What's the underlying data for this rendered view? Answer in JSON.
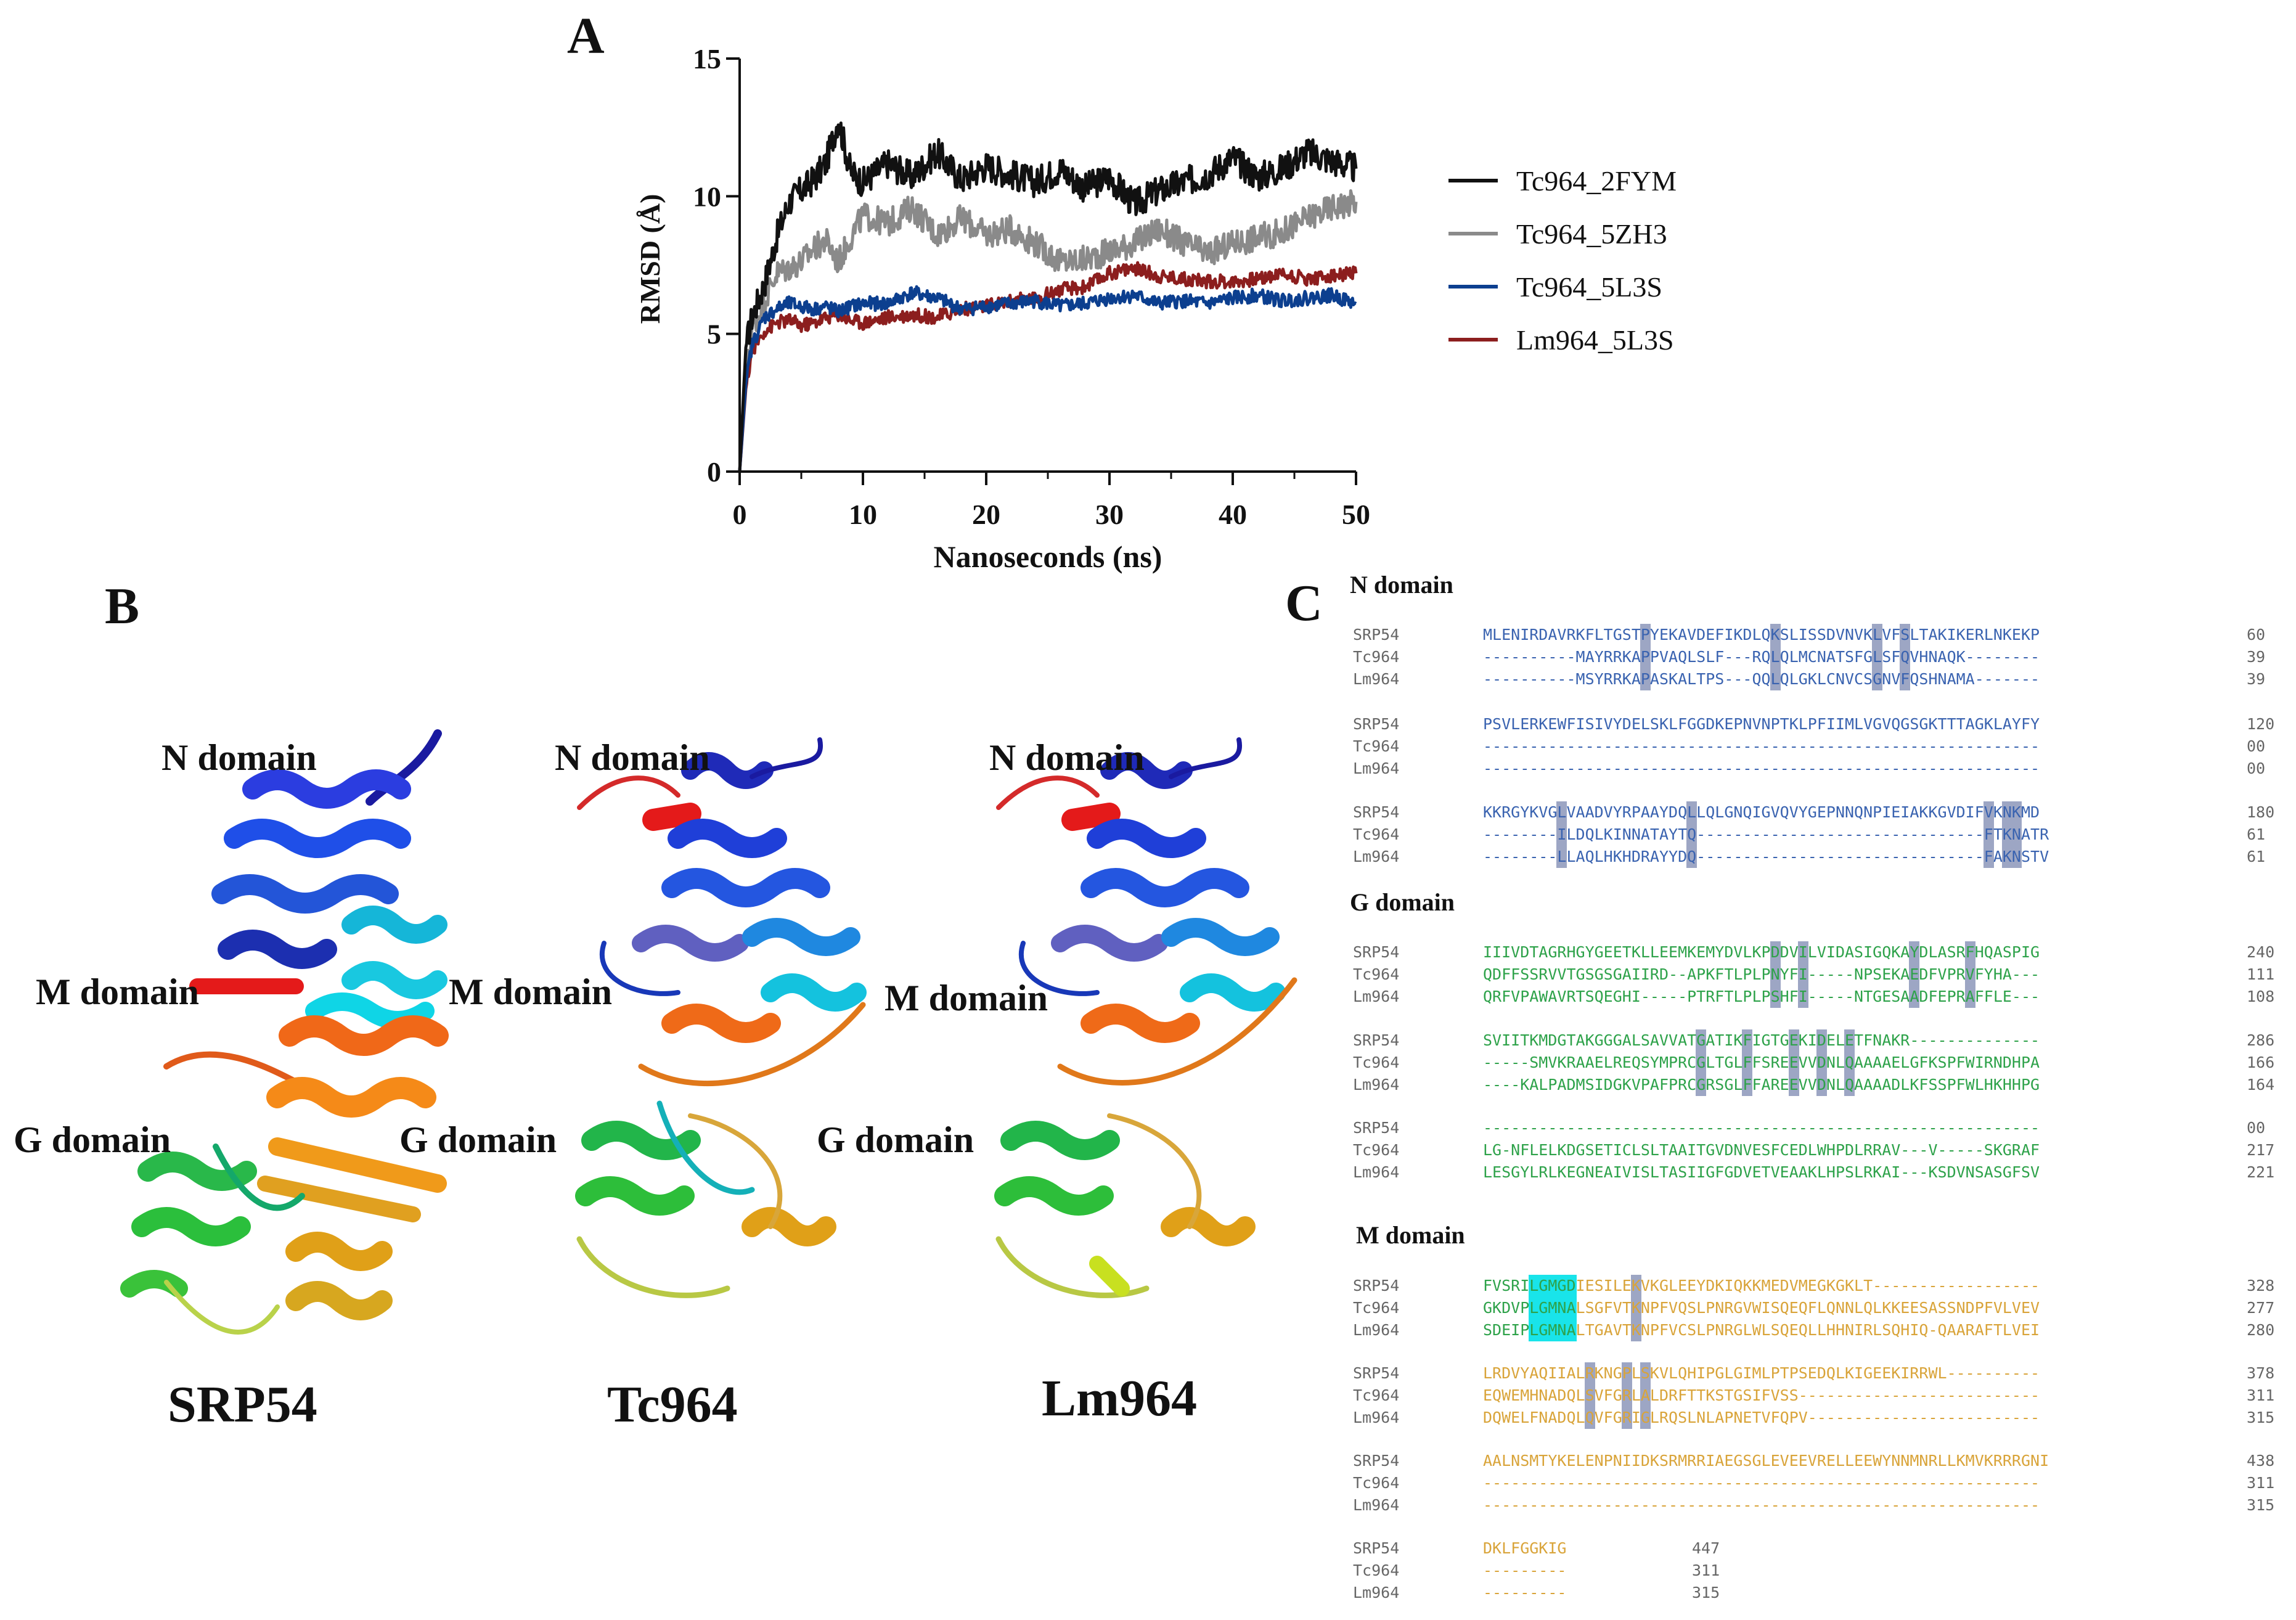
{
  "colors": {
    "tc964_2fym": "#111111",
    "tc964_5zh3": "#8a8a8a",
    "tc964_5l3s": "#0c3f8f",
    "lm964_5l3s": "#8c1e1e",
    "n_domain_seq": "#3a63b0",
    "g_domain_seq": "#2ea24a",
    "m_domain_seq": "#d9a43a",
    "highlight_grey": "#9da6c4",
    "highlight_cyan": "#19e4ea"
  },
  "panel_a": {
    "letter": "A",
    "chart_data": {
      "type": "line",
      "title": "",
      "xlabel": "Nanoseconds (ns)",
      "ylabel": "RMSD (Å)",
      "xlim": [
        0,
        50
      ],
      "ylim": [
        0,
        15
      ],
      "xticks": [
        "0",
        "10",
        "20",
        "30",
        "40",
        "50"
      ],
      "yticks": [
        "0",
        "5",
        "10",
        "15"
      ],
      "x": [
        0,
        0.5,
        1,
        2,
        3,
        4,
        5,
        6,
        7,
        8,
        9,
        10,
        12,
        14,
        16,
        18,
        20,
        22,
        24,
        26,
        28,
        30,
        32,
        34,
        36,
        38,
        40,
        42,
        44,
        46,
        48,
        50
      ],
      "series": [
        {
          "name": "Tc964_2FYM",
          "values": [
            0,
            4.5,
            5.6,
            6.8,
            8.5,
            9.8,
            10.2,
            10.6,
            11.2,
            12.8,
            10.9,
            10.5,
            11.2,
            10.7,
            11.6,
            10.6,
            11.1,
            10.8,
            10.5,
            11.0,
            10.3,
            10.7,
            9.7,
            10.2,
            10.5,
            10.8,
            11.4,
            10.7,
            11.0,
            11.6,
            11.3,
            11.0
          ]
        },
        {
          "name": "Tc964_5ZH3",
          "values": [
            0,
            3.5,
            5.2,
            6.2,
            7.2,
            7.4,
            7.6,
            8.1,
            8.4,
            7.6,
            8.5,
            9.3,
            9.0,
            9.6,
            8.6,
            9.2,
            8.6,
            8.8,
            8.3,
            7.6,
            7.7,
            8.0,
            8.3,
            8.8,
            8.3,
            7.9,
            8.3,
            8.5,
            8.7,
            9.2,
            9.6,
            9.8
          ]
        },
        {
          "name": "Tc964_5L3S",
          "values": [
            0,
            3.2,
            4.6,
            5.6,
            5.9,
            6.1,
            6.0,
            5.9,
            6.0,
            5.8,
            6.0,
            6.1,
            6.1,
            6.5,
            6.3,
            5.9,
            6.0,
            6.1,
            6.2,
            6.0,
            6.1,
            6.3,
            6.4,
            6.1,
            6.2,
            6.1,
            6.3,
            6.4,
            6.2,
            6.3,
            6.4,
            6.1
          ]
        },
        {
          "name": "Lm964_5L3S",
          "values": [
            0,
            3.0,
            4.4,
            5.1,
            5.4,
            5.5,
            5.3,
            5.4,
            5.6,
            5.7,
            5.5,
            5.4,
            5.6,
            5.7,
            5.6,
            5.9,
            6.0,
            6.2,
            6.3,
            6.6,
            6.7,
            7.2,
            7.4,
            7.1,
            7.0,
            6.9,
            6.9,
            7.0,
            7.2,
            7.0,
            7.1,
            7.2
          ]
        }
      ],
      "legend_position": "right"
    }
  },
  "panel_b": {
    "letter": "B",
    "proteins": [
      {
        "name": "SRP54",
        "n_label": "N domain",
        "m_label": "M domain",
        "g_label": "G domain"
      },
      {
        "name": "Tc964",
        "n_label": "N domain",
        "m_label": "M domain",
        "g_label": "G domain"
      },
      {
        "name": "Lm964",
        "n_label": "N domain",
        "m_label": "M domain",
        "g_label": "G domain"
      }
    ]
  },
  "panel_c": {
    "letter": "C",
    "sections": [
      {
        "title": "N domain",
        "blocks": [
          {
            "rows": [
              {
                "name": "SRP54",
                "seq": "MLENIRDAVRKFLTGSTPYEKAVDEFIKDLQKSLISSDVNVKLVFSLTAKIKERLNKEKP",
                "num": "60"
              },
              {
                "name": "Tc964",
                "seq": "----------MAYRRKAPPVAQLSLF---RQLQLMCNATSFGLSFQVHNAQK--------",
                "num": "39"
              },
              {
                "name": "Lm964",
                "seq": "----------MSYRRKAPASKALTPS---QQLQLGKLCNVCSGNVFQSHNAMA-------",
                "num": "39"
              }
            ],
            "hl": [
              17,
              31,
              42,
              45
            ]
          },
          {
            "rows": [
              {
                "name": "SRP54",
                "seq": "PSVLERKEWFISIVYDELSKLFGGDKEPNVNPTKLPFIIMLVGVQGSGKTTTAGKLAYFY",
                "num": "120"
              },
              {
                "name": "Tc964",
                "seq": "------------------------------------------------------------",
                "num": "00"
              },
              {
                "name": "Lm964",
                "seq": "------------------------------------------------------------",
                "num": "00"
              }
            ],
            "hl": []
          },
          {
            "rows": [
              {
                "name": "SRP54",
                "seq": "KKRGYKVGLVAADVYRPAAYDQLLQLGNQIGVQVYGEPNNQNPIEIAKKGVDIFVKNKMD",
                "num": "180"
              },
              {
                "name": "Tc964",
                "seq": "--------ILDQLKINNATAYTQ-------------------------------FTKNATR",
                "num": "61"
              },
              {
                "name": "Lm964",
                "seq": "--------LLAQLHKHDRAYYDQ-------------------------------FAKNSTV",
                "num": "61"
              }
            ],
            "hl": [
              8,
              22,
              54,
              56,
              57
            ]
          }
        ]
      },
      {
        "title": "G domain",
        "blocks": [
          {
            "rows": [
              {
                "name": "SRP54",
                "seq": "IIIVDTAGRHGYGEETKLLEEMKEMYDVLKPDDVILVIDASIGQKAYDLASRFHQASPIG",
                "num": "240"
              },
              {
                "name": "Tc964",
                "seq": "QDFFSSRVVTGSGSGAIIRD--APKFTLPLPNYFI-----NPSEKAEDFVPRVFYHA---",
                "num": "111"
              },
              {
                "name": "Lm964",
                "seq": "QRFVPAWAVRTSQEGHI-----PTRFTLPLPSHFI-----NTGESAADFEPRAFFLE---",
                "num": "108"
              }
            ],
            "hl": [
              31,
              34,
              46,
              52
            ]
          },
          {
            "rows": [
              {
                "name": "SRP54",
                "seq": "SVIITKMDGTAKGGGALSAVVATGATIKFIGTGEKIDELETFNAKR--------------",
                "num": "286"
              },
              {
                "name": "Tc964",
                "seq": "-----SMVKRAAELREQSYMPRCGLTGLFFSREEVVDNLQAAAAELGFKSPFWIRNDHPA",
                "num": "166"
              },
              {
                "name": "Lm964",
                "seq": "----KALPADMSIDGKVPAFPRCGRSGLFFAREEVVDNLQAAAADLKFSSPFWLHKHHPG",
                "num": "164"
              }
            ],
            "hl": [
              23,
              28,
              33,
              36,
              39
            ]
          },
          {
            "rows": [
              {
                "name": "SRP54",
                "seq": "------------------------------------------------------------",
                "num": "00"
              },
              {
                "name": "Tc964",
                "seq": "LG-NFLELKDGSETICLSLTAAITGVDNVESFCEDLWHPDLRRAV---V-----SKGRAF",
                "num": "217"
              },
              {
                "name": "Lm964",
                "seq": "LESGYLRLKEGNEAIVISLTASIIGFGDVETVEAAKLHPSLRKAI---KSDVNSASGFSV",
                "num": "221"
              }
            ],
            "hl": []
          }
        ]
      },
      {
        "title": "M domain",
        "blocks": [
          {
            "rows": [
              {
                "name": "SRP54",
                "seq": "FVSRILGMGDIESILEKVKGLEEYDKIQKKMEDVMEGKGKLT------------------",
                "num": "328"
              },
              {
                "name": "Tc964",
                "seq": "GKDVPLGMNALSGFVTKNPFVQSLPNRGVWISQEQFLQNNLQLKKEESASSNDPFVLVEV",
                "num": "277"
              },
              {
                "name": "Lm964",
                "seq": "SDEIPLGMNALTGAVTKNPFVCSLPNRGLWLSQEQLLHHNIRLSQHIQ-QAARAFTLVEI",
                "num": "280"
              }
            ],
            "hl": [
              16
            ],
            "cyan": [
              5,
              9
            ],
            "gsplit": 10
          },
          {
            "rows": [
              {
                "name": "SRP54",
                "seq": "LRDVYAQIIALRKNGPLSKVLQHIPGLGIMLPTPSEDQLKIGEEKIRRWL----------",
                "num": "378"
              },
              {
                "name": "Tc964",
                "seq": "EQWEMHNADQLSVFGRLALDRFTTKSTGSIFVSS--------------------------",
                "num": "311"
              },
              {
                "name": "Lm964",
                "seq": "DQWELFNADQLQVFGRIGLRQSLNLAPNETVFQPV-------------------------",
                "num": "315"
              }
            ],
            "hl": [
              11,
              15,
              17
            ]
          },
          {
            "rows": [
              {
                "name": "SRP54",
                "seq": "AALNSMTYKELENPNIIDKSRMRRIAEGSGLEVEEVRELLEEWYNNMNRLLKMVKRRRGNI",
                "num": "438"
              },
              {
                "name": "Tc964",
                "seq": "------------------------------------------------------------",
                "num": "311"
              },
              {
                "name": "Lm964",
                "seq": "------------------------------------------------------------",
                "num": "315"
              }
            ],
            "hl": []
          },
          {
            "rows": [
              {
                "name": "SRP54",
                "seq": "DKLFGGKIG",
                "num": "447"
              },
              {
                "name": "Tc964",
                "seq": "---------",
                "num": "311"
              },
              {
                "name": "Lm964",
                "seq": "---------",
                "num": "315"
              }
            ],
            "hl": [],
            "short": true
          }
        ]
      }
    ]
  }
}
